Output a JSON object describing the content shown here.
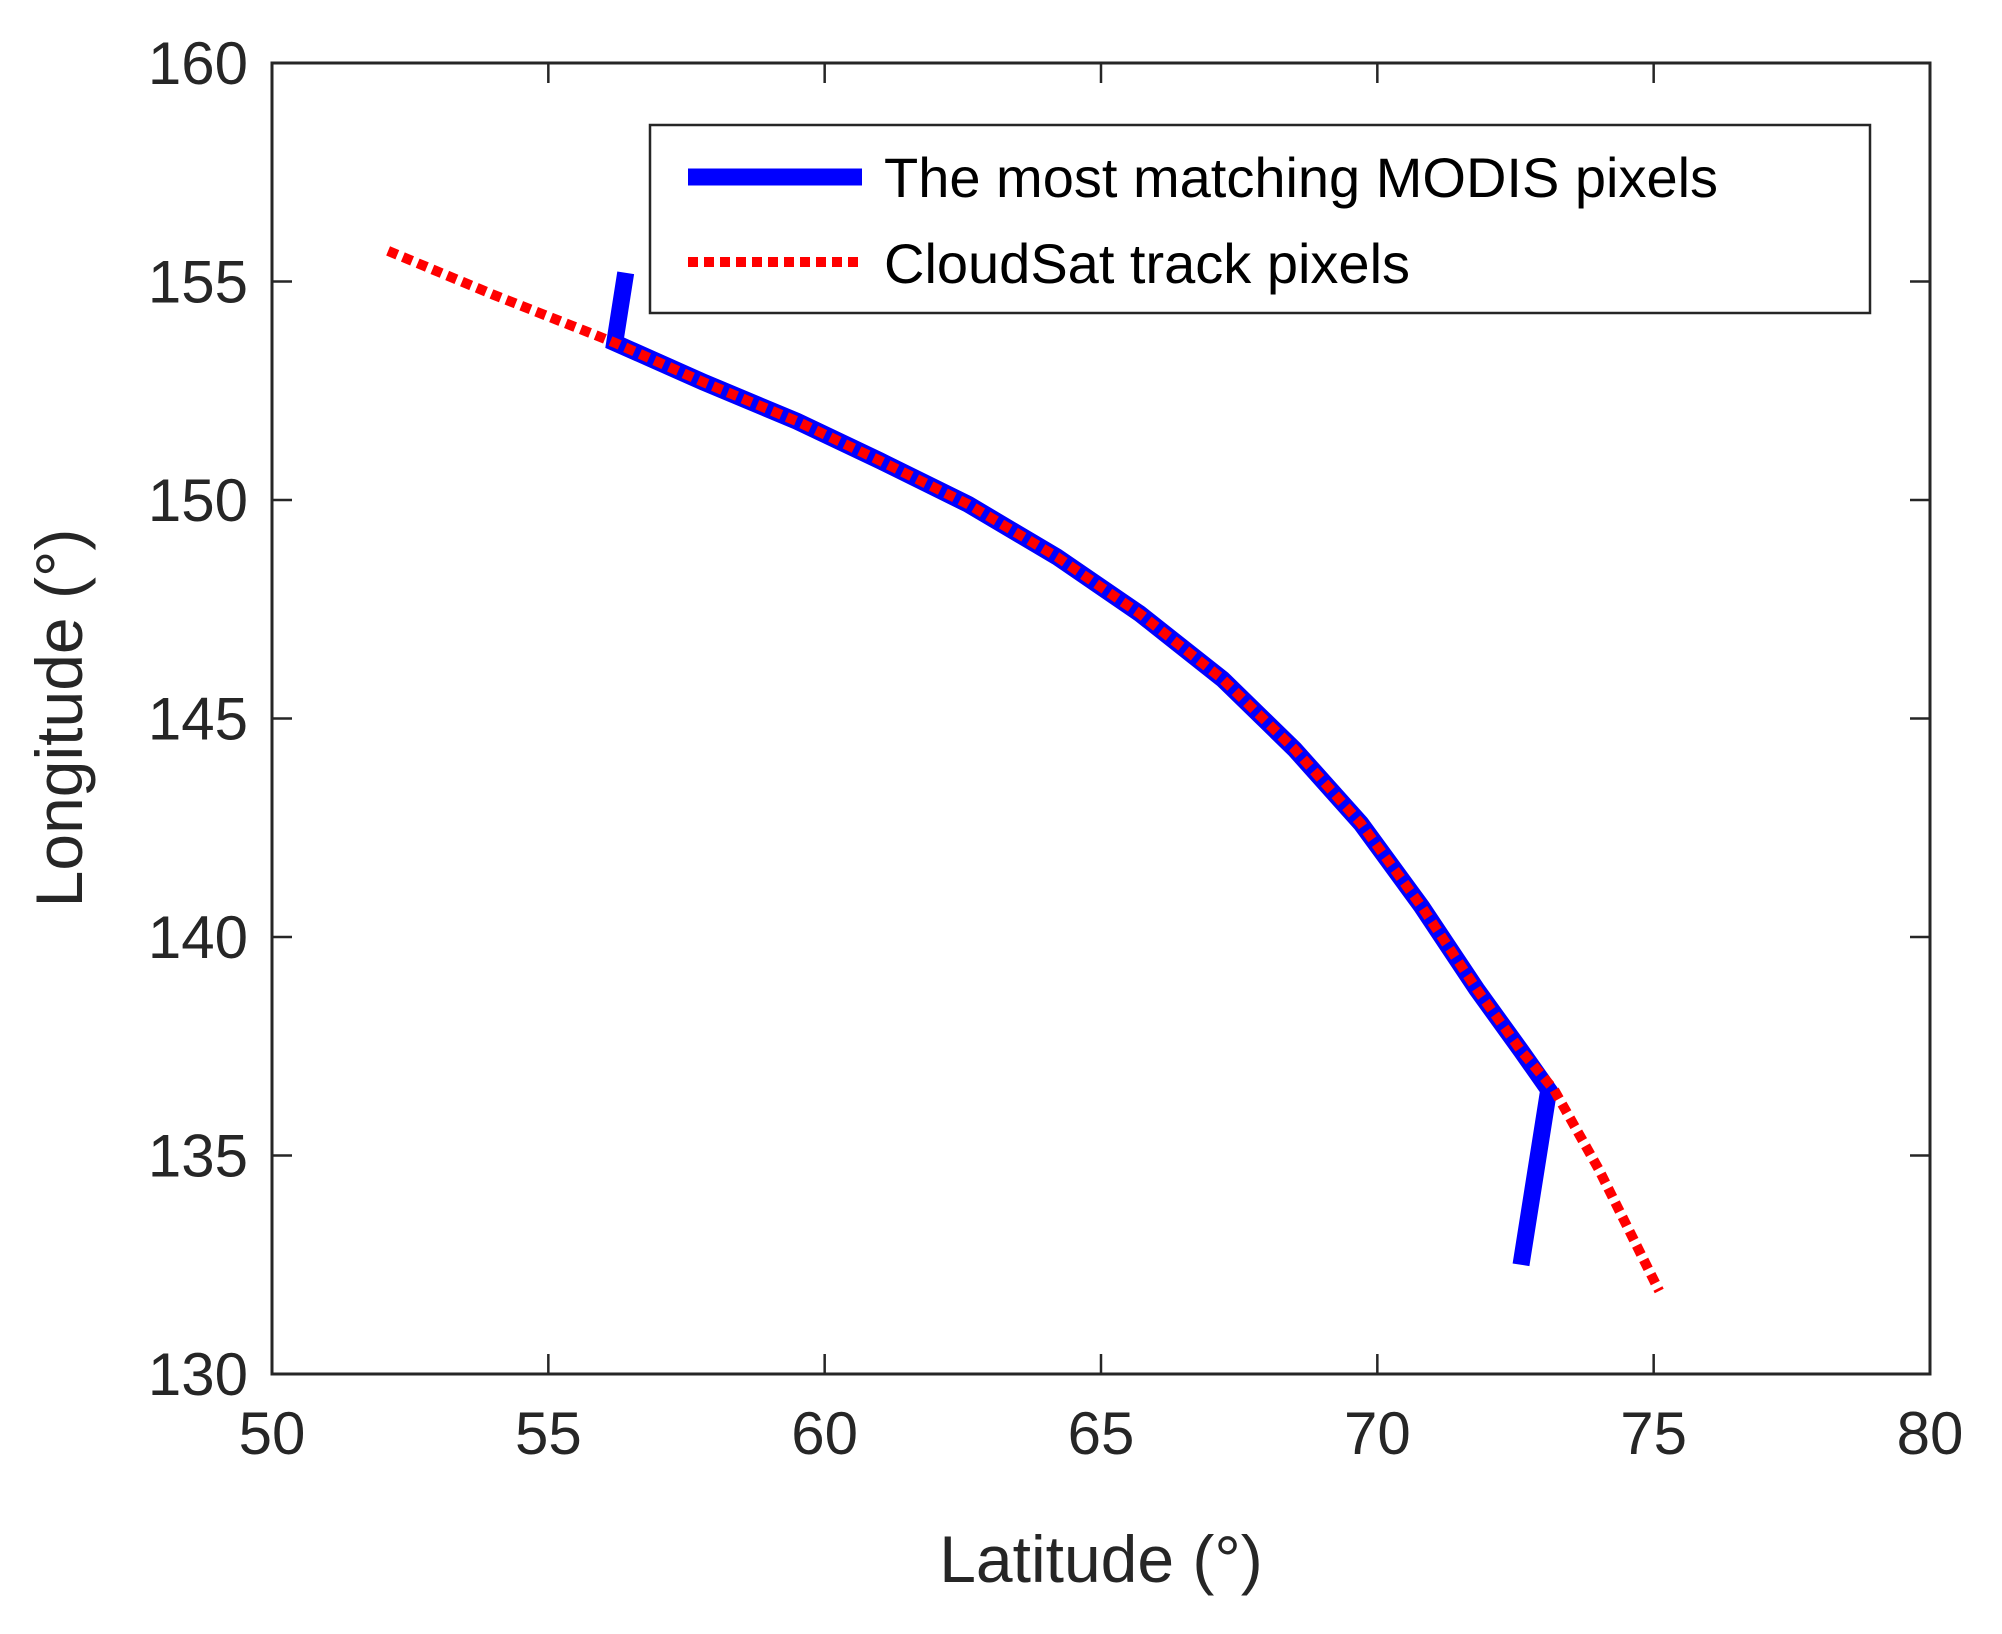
{
  "chart_data": {
    "type": "line",
    "xlabel": "Latitude (°)",
    "ylabel": "Longitude (°)",
    "xlim": [
      50,
      80
    ],
    "ylim": [
      130,
      160
    ],
    "xticks": [
      50,
      55,
      60,
      65,
      70,
      75,
      80
    ],
    "yticks": [
      130,
      135,
      140,
      145,
      150,
      155,
      160
    ],
    "xtick_labels": [
      "50",
      "55",
      "60",
      "65",
      "70",
      "75",
      "80"
    ],
    "ytick_labels": [
      "130",
      "135",
      "140",
      "145",
      "150",
      "155",
      "160"
    ],
    "grid": false,
    "legend_position": "top-right",
    "series": [
      {
        "name": "The most matching MODIS pixels",
        "color": "#0000ff",
        "style": "solid",
        "x": [
          56.4,
          56.2,
          57.8,
          59.5,
          61.0,
          62.6,
          64.2,
          65.7,
          67.2,
          68.5,
          69.7,
          70.8,
          71.8,
          72.6,
          73.1,
          72.6
        ],
        "y": [
          155.2,
          153.6,
          152.7,
          151.8,
          150.9,
          149.9,
          148.7,
          147.4,
          145.9,
          144.3,
          142.6,
          140.7,
          138.8,
          137.4,
          136.5,
          132.5
        ]
      },
      {
        "name": "CloudSat track pixels",
        "color": "#ff0000",
        "style": "dotted",
        "x": [
          52.1,
          54.0,
          56.2,
          57.8,
          59.5,
          61.0,
          62.6,
          64.2,
          65.7,
          67.2,
          68.5,
          69.7,
          70.8,
          71.8,
          72.6,
          73.2,
          74.0,
          75.1
        ],
        "y": [
          155.7,
          154.7,
          153.6,
          152.7,
          151.8,
          150.9,
          149.9,
          148.7,
          147.4,
          145.9,
          144.3,
          142.6,
          140.7,
          138.8,
          137.4,
          136.5,
          134.7,
          131.9
        ]
      }
    ]
  }
}
